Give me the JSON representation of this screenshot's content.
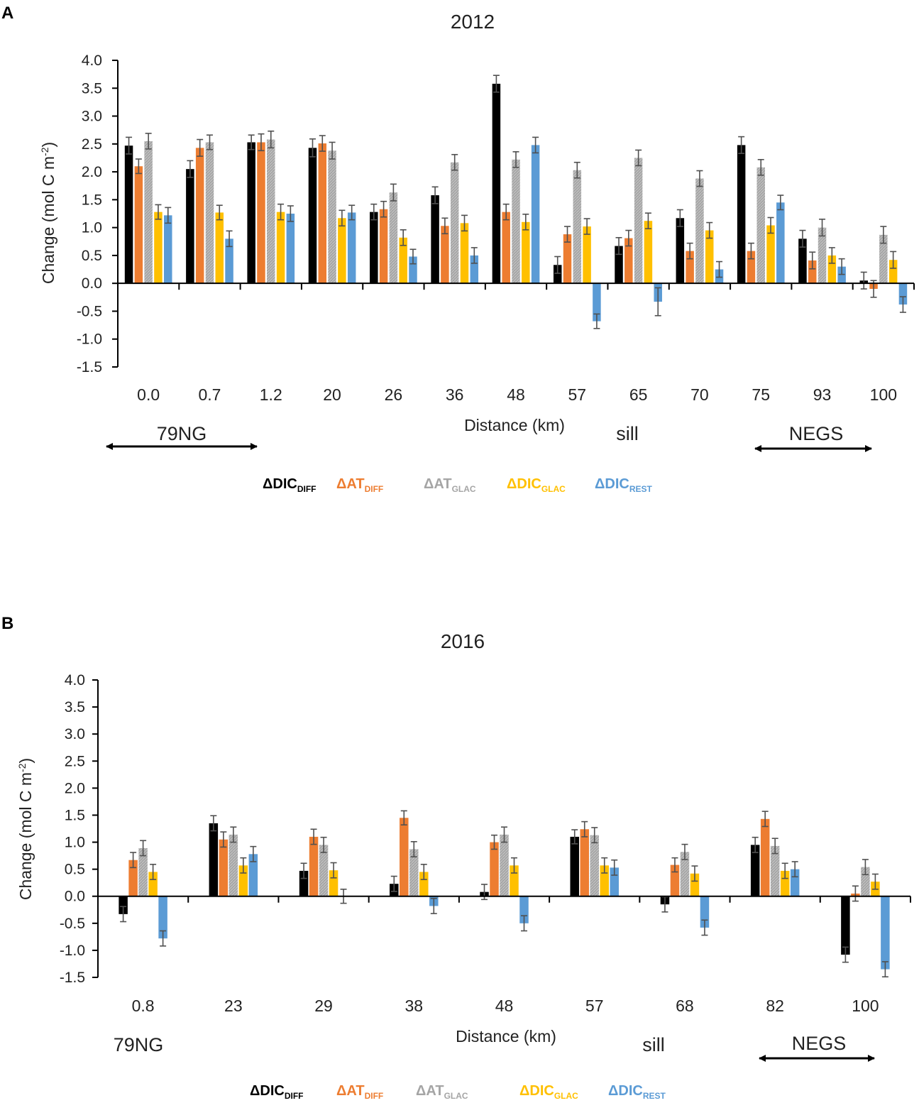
{
  "chart_data": [
    {
      "panel": "A",
      "type": "bar",
      "title": "2012",
      "xlabel": "Distance (km)",
      "ylabel_main": "Change (mol C m",
      "ylabel_sup": "-2",
      "ylabel_tail": ")",
      "ylim": [
        -1.5,
        4.0
      ],
      "yticks": [
        "4.0",
        "3.5",
        "3.0",
        "2.5",
        "2.0",
        "1.5",
        "1.0",
        "0.5",
        "0.0",
        "-0.5",
        "-1.0",
        "-1.5"
      ],
      "categories": [
        "0.0",
        "0.7",
        "1.2",
        "20",
        "26",
        "36",
        "48",
        "57",
        "65",
        "70",
        "75",
        "93",
        "100"
      ],
      "series": [
        {
          "name": "ΔDIC",
          "sub": "DIFF",
          "color": "#000000",
          "values": [
            2.47,
            2.05,
            2.53,
            2.43,
            1.28,
            1.58,
            3.58,
            0.33,
            0.67,
            1.17,
            2.48,
            0.8,
            0.05
          ],
          "err": [
            0.15,
            0.15,
            0.13,
            0.16,
            0.14,
            0.15,
            0.15,
            0.15,
            0.15,
            0.15,
            0.15,
            0.15,
            0.15
          ]
        },
        {
          "name": "ΔAT",
          "sub": "DIFF",
          "color": "#ED7D31",
          "values": [
            2.1,
            2.43,
            2.53,
            2.51,
            1.33,
            1.03,
            1.28,
            0.88,
            0.81,
            0.58,
            0.58,
            0.41,
            -0.1
          ],
          "err": [
            0.13,
            0.15,
            0.15,
            0.14,
            0.14,
            0.14,
            0.14,
            0.14,
            0.14,
            0.14,
            0.14,
            0.15,
            0.15
          ]
        },
        {
          "name": "ΔAT",
          "sub": "GLAC",
          "color": "#A5A5A5",
          "values": [
            2.55,
            2.53,
            2.58,
            2.38,
            1.63,
            2.17,
            2.22,
            2.03,
            2.25,
            1.88,
            2.08,
            1.0,
            0.87
          ],
          "err": [
            0.14,
            0.13,
            0.15,
            0.15,
            0.15,
            0.14,
            0.14,
            0.14,
            0.14,
            0.14,
            0.14,
            0.15,
            0.15
          ]
        },
        {
          "name": "ΔDIC",
          "sub": "GLAC",
          "color": "#FFC000",
          "values": [
            1.28,
            1.27,
            1.28,
            1.17,
            0.82,
            1.08,
            1.1,
            1.02,
            1.12,
            0.95,
            1.04,
            0.5,
            0.42
          ],
          "err": [
            0.13,
            0.13,
            0.14,
            0.14,
            0.14,
            0.14,
            0.14,
            0.14,
            0.14,
            0.14,
            0.14,
            0.14,
            0.15
          ]
        },
        {
          "name": "ΔDIC",
          "sub": "REST",
          "color": "#5B9BD5",
          "values": [
            1.22,
            0.8,
            1.25,
            1.27,
            0.48,
            0.5,
            2.48,
            -0.68,
            -0.33,
            0.25,
            1.45,
            0.3,
            -0.38
          ],
          "err": [
            0.14,
            0.14,
            0.14,
            0.13,
            0.13,
            0.14,
            0.14,
            0.13,
            0.25,
            0.14,
            0.13,
            0.14,
            0.14
          ]
        }
      ],
      "annotations": [
        {
          "text": "79NG"
        },
        {
          "text": "sill"
        },
        {
          "text": "NEGS"
        }
      ]
    },
    {
      "panel": "B",
      "type": "bar",
      "title": "2016",
      "xlabel": "Distance (km)",
      "ylabel_main": "Change (mol C m",
      "ylabel_sup": "-2",
      "ylabel_tail": ")",
      "ylim": [
        -1.5,
        4.0
      ],
      "yticks": [
        "4.0",
        "3.5",
        "3.0",
        "2.5",
        "2.0",
        "1.5",
        "1.0",
        "0.5",
        "0.0",
        "-0.5",
        "-1.0",
        "-1.5"
      ],
      "categories": [
        "0.8",
        "23",
        "29",
        "38",
        "48",
        "57",
        "68",
        "82",
        "100"
      ],
      "series": [
        {
          "name": "ΔDIC",
          "sub": "DIFF",
          "color": "#000000",
          "values": [
            -0.33,
            1.35,
            0.47,
            0.23,
            0.08,
            1.1,
            -0.15,
            0.95,
            -1.08
          ],
          "err": [
            0.14,
            0.14,
            0.14,
            0.14,
            0.14,
            0.13,
            0.14,
            0.14,
            0.14
          ]
        },
        {
          "name": "ΔAT",
          "sub": "DIFF",
          "color": "#ED7D31",
          "values": [
            0.67,
            1.05,
            1.1,
            1.45,
            1.0,
            1.24,
            0.58,
            1.43,
            0.05
          ],
          "err": [
            0.14,
            0.14,
            0.14,
            0.13,
            0.13,
            0.14,
            0.13,
            0.14,
            0.14
          ]
        },
        {
          "name": "ΔAT",
          "sub": "GLAC",
          "color": "#A5A5A5",
          "values": [
            0.89,
            1.14,
            0.95,
            0.87,
            1.14,
            1.13,
            0.82,
            0.93,
            0.54
          ],
          "err": [
            0.14,
            0.14,
            0.14,
            0.14,
            0.14,
            0.14,
            0.14,
            0.14,
            0.14
          ]
        },
        {
          "name": "ΔDIC",
          "sub": "GLAC",
          "color": "#FFC000",
          "values": [
            0.45,
            0.57,
            0.48,
            0.45,
            0.57,
            0.57,
            0.42,
            0.47,
            0.27
          ],
          "err": [
            0.14,
            0.14,
            0.14,
            0.14,
            0.14,
            0.14,
            0.14,
            0.14,
            0.14
          ]
        },
        {
          "name": "ΔDIC",
          "sub": "REST",
          "color": "#5B9BD5",
          "values": [
            -0.78,
            0.78,
            0.0,
            -0.18,
            -0.5,
            0.53,
            -0.58,
            0.5,
            -1.35
          ],
          "err": [
            0.14,
            0.14,
            0.13,
            0.14,
            0.14,
            0.14,
            0.14,
            0.14,
            0.14
          ]
        }
      ],
      "annotations": [
        {
          "text": "79NG"
        },
        {
          "text": "sill"
        },
        {
          "text": "NEGS"
        }
      ]
    }
  ]
}
